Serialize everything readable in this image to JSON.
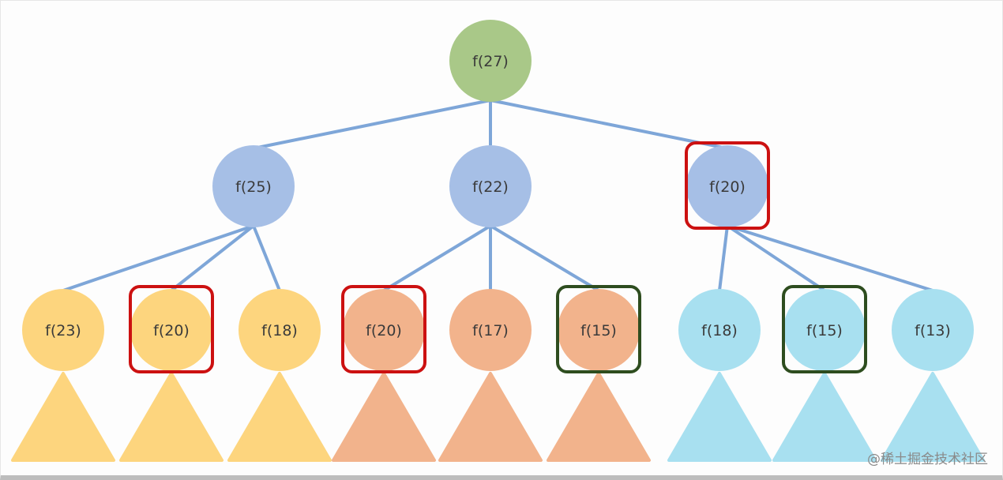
{
  "diagram": {
    "colors": {
      "root": "#a9c888",
      "level2": "#a6bfe6",
      "subtree_left": "#fdd57e",
      "subtree_middle": "#f2b38c",
      "subtree_right": "#a8e0f0",
      "edge": "#7ea6d8",
      "repeat_highlight": "#cc1111",
      "second_repeat_highlight": "#2e4d1f"
    },
    "root": {
      "label": "f(27)"
    },
    "level2": [
      {
        "label": "f(25)",
        "highlight": "none"
      },
      {
        "label": "f(22)",
        "highlight": "none"
      },
      {
        "label": "f(20)",
        "highlight": "red"
      }
    ],
    "leaves": [
      {
        "label": "f(23)",
        "parent": 0,
        "group": "subtree_left",
        "highlight": "none"
      },
      {
        "label": "f(20)",
        "parent": 0,
        "group": "subtree_left",
        "highlight": "red"
      },
      {
        "label": "f(18)",
        "parent": 0,
        "group": "subtree_left",
        "highlight": "none"
      },
      {
        "label": "f(20)",
        "parent": 1,
        "group": "subtree_middle",
        "highlight": "red"
      },
      {
        "label": "f(17)",
        "parent": 1,
        "group": "subtree_middle",
        "highlight": "none"
      },
      {
        "label": "f(15)",
        "parent": 1,
        "group": "subtree_middle",
        "highlight": "green"
      },
      {
        "label": "f(18)",
        "parent": 2,
        "group": "subtree_right",
        "highlight": "none"
      },
      {
        "label": "f(15)",
        "parent": 2,
        "group": "subtree_right",
        "highlight": "green"
      },
      {
        "label": "f(13)",
        "parent": 2,
        "group": "subtree_right",
        "highlight": "none"
      }
    ]
  },
  "watermark": "@稀土掘金技术社区"
}
